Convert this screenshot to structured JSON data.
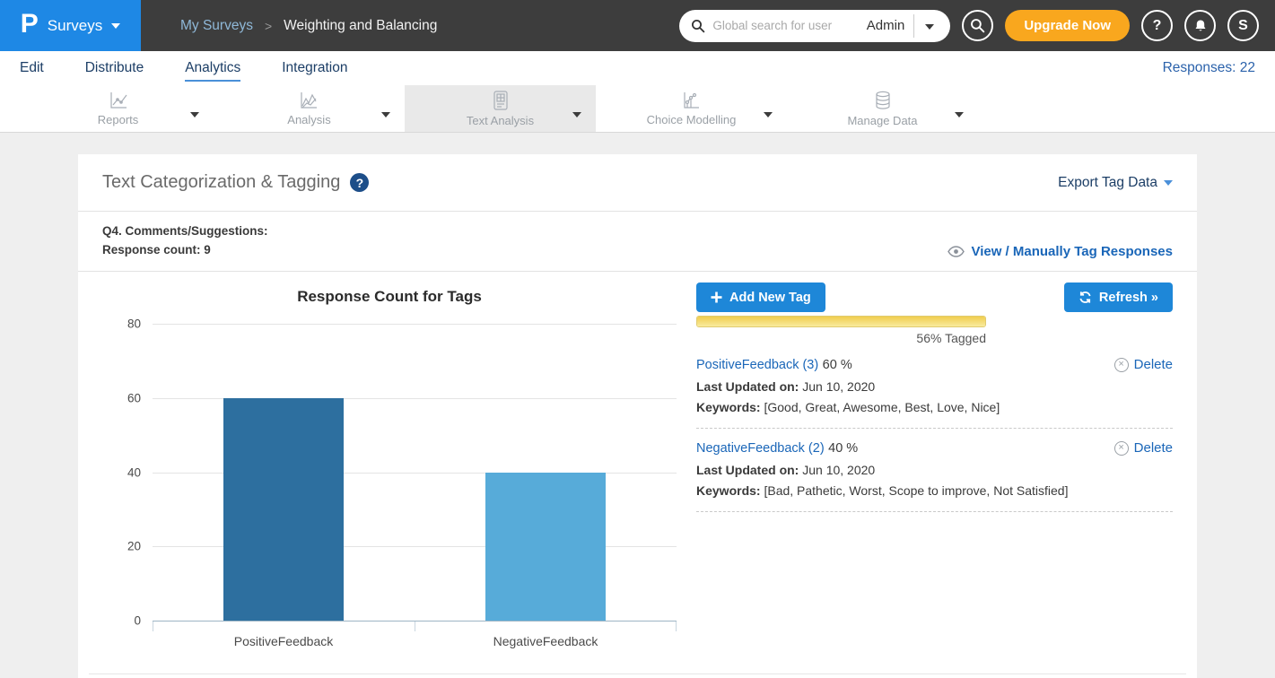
{
  "header": {
    "logo_glyph": "P",
    "product_label": "Surveys",
    "breadcrumb": {
      "parent": "My Surveys",
      "separator": ">",
      "current": "Weighting and Balancing"
    },
    "search_placeholder": "Global search for user",
    "search_scope": "Admin",
    "upgrade_label": "Upgrade Now",
    "help_glyph": "?",
    "avatar_initial": "S"
  },
  "nav": {
    "items": {
      "edit": "Edit",
      "distribute": "Distribute",
      "analytics": "Analytics",
      "integration": "Integration"
    },
    "active": "Analytics",
    "responses_label": "Responses: 22"
  },
  "tabs": {
    "reports": "Reports",
    "analysis": "Analysis",
    "text_analysis": "Text Analysis",
    "choice_modelling": "Choice Modelling",
    "manage_data": "Manage Data",
    "active": "Text Analysis"
  },
  "panel": {
    "title": "Text Categorization & Tagging",
    "help_glyph": "?",
    "export_label": "Export Tag Data",
    "question_title": "Q4. Comments/Suggestions:",
    "response_count_label": "Response count: 9",
    "view_link_label": "View / Manually Tag Responses",
    "add_tag_label": "Add New Tag",
    "refresh_label": "Refresh »",
    "tagged_percent": 56,
    "tagged_label": "56% Tagged",
    "tags": [
      {
        "name": "PositiveFeedback (3)",
        "percent": "60 %",
        "updated_label": "Last Updated on:",
        "updated_value": "Jun 10, 2020",
        "keywords_label": "Keywords:",
        "keywords_value": "[Good, Great, Awesome, Best, Love, Nice]",
        "delete_label": "Delete"
      },
      {
        "name": "NegativeFeedback (2)",
        "percent": "40 %",
        "updated_label": "Last Updated on:",
        "updated_value": "Jun 10, 2020",
        "keywords_label": "Keywords:",
        "keywords_value": "[Bad, Pathetic, Worst, Scope to improve, Not Satisfied]",
        "delete_label": "Delete"
      }
    ]
  },
  "chart_data": {
    "type": "bar",
    "title": "Response Count for Tags",
    "categories": [
      "PositiveFeedback",
      "NegativeFeedback"
    ],
    "values": [
      60,
      40
    ],
    "bar_colors": [
      "#2d6f9f",
      "#57abd9"
    ],
    "xlabel": "",
    "ylabel": "",
    "ylim": [
      0,
      80
    ],
    "yticks": [
      0,
      20,
      40,
      60,
      80
    ],
    "grid": true,
    "legend": "none"
  },
  "colors": {
    "accent_blue": "#1e87d8",
    "brand_blue": "#1e88e5",
    "header_bg": "#3d3d3d",
    "orange": "#f9a71e",
    "link_blue": "#1a66b8",
    "navy": "#1c3e66",
    "bar_positive": "#2d6f9f",
    "bar_negative": "#57abd9",
    "progress_yellow": "#f2d155"
  }
}
